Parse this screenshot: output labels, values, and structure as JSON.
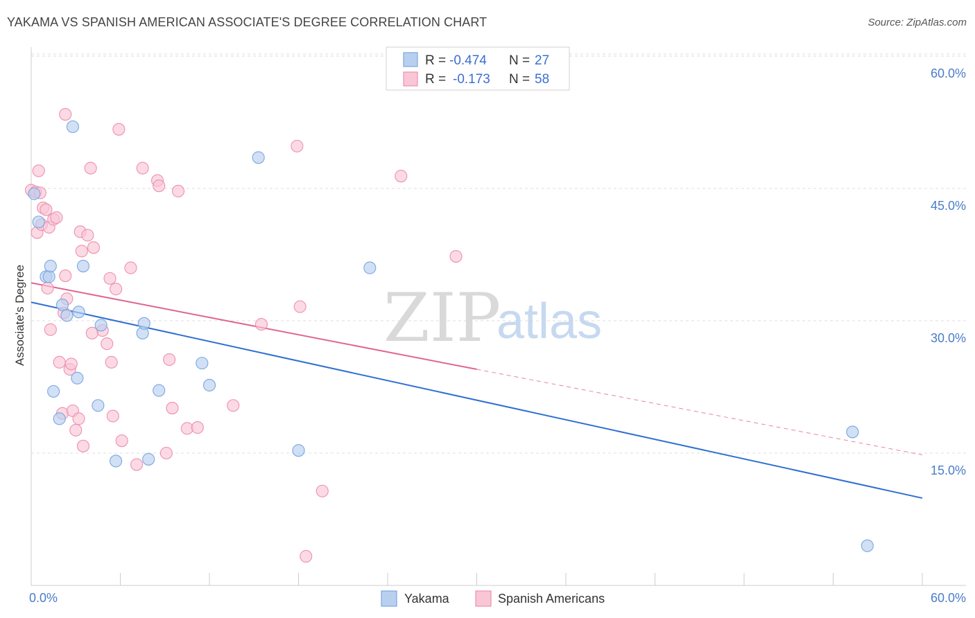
{
  "title": "YAKAMA VS SPANISH AMERICAN ASSOCIATE'S DEGREE CORRELATION CHART",
  "source": "Source: ZipAtlas.com",
  "watermark": {
    "zip": "ZIP",
    "atlas": "atlas"
  },
  "colors": {
    "blue_fill": "#b8d0f0",
    "blue_stroke": "#7aa6e0",
    "blue_line": "#2f6fd0",
    "pink_fill": "#f9c6d6",
    "pink_stroke": "#ee8fb0",
    "pink_line": "#e06590",
    "grid": "#dddddd",
    "axis_label": "#4a7cc9"
  },
  "chart_data": {
    "type": "scatter",
    "title": "YAKAMA VS SPANISH AMERICAN ASSOCIATE'S DEGREE CORRELATION CHART",
    "xlabel": "",
    "ylabel": "Associate's Degree",
    "xlim": [
      0,
      60
    ],
    "ylim": [
      0,
      61
    ],
    "x_tick_labels": {
      "min": "0.0%",
      "max": "60.0%"
    },
    "y_ticks": [
      {
        "value": 15,
        "label": "15.0%"
      },
      {
        "value": 30,
        "label": "30.0%"
      },
      {
        "value": 45,
        "label": "45.0%"
      },
      {
        "value": 60,
        "label": "60.0%"
      }
    ],
    "legend": [
      {
        "series": "Yakama",
        "r_label": "R =",
        "r_value": "-0.474",
        "n_label": "N =",
        "n_value": "27"
      },
      {
        "series": "Spanish Americans",
        "r_label": "R =",
        "r_value": "-0.173",
        "n_label": "N =",
        "n_value": "58"
      }
    ],
    "series": [
      {
        "name": "Yakama",
        "color": "blue",
        "trend": {
          "x0": 0,
          "y0": 32.1,
          "x1": 60,
          "y1": 9.9
        },
        "points": [
          [
            0.2,
            44.4
          ],
          [
            0.5,
            41.2
          ],
          [
            1.0,
            35.0
          ],
          [
            1.2,
            35.0
          ],
          [
            1.3,
            36.2
          ],
          [
            2.8,
            52.0
          ],
          [
            3.5,
            36.2
          ],
          [
            2.1,
            31.8
          ],
          [
            2.4,
            30.6
          ],
          [
            3.2,
            31.0
          ],
          [
            4.7,
            29.5
          ],
          [
            7.5,
            28.6
          ],
          [
            7.6,
            29.7
          ],
          [
            1.5,
            22.0
          ],
          [
            3.1,
            23.5
          ],
          [
            1.9,
            18.9
          ],
          [
            4.5,
            20.4
          ],
          [
            8.6,
            22.1
          ],
          [
            11.5,
            25.2
          ],
          [
            12.0,
            22.7
          ],
          [
            5.7,
            14.1
          ],
          [
            7.9,
            14.3
          ],
          [
            15.3,
            48.5
          ],
          [
            18.0,
            15.3
          ],
          [
            22.8,
            36.0
          ],
          [
            55.3,
            17.4
          ],
          [
            56.3,
            4.5
          ]
        ]
      },
      {
        "name": "Spanish Americans",
        "color": "pink",
        "trend_solid": {
          "x0": 0,
          "y0": 34.3,
          "x1": 30,
          "y1": 24.5
        },
        "trend_dashed": {
          "x0": 30,
          "y0": 24.5,
          "x1": 60,
          "y1": 14.8
        },
        "points": [
          [
            0.0,
            44.8
          ],
          [
            0.4,
            40.0
          ],
          [
            0.5,
            47.0
          ],
          [
            0.7,
            40.9
          ],
          [
            0.8,
            42.8
          ],
          [
            1.0,
            42.6
          ],
          [
            1.1,
            33.7
          ],
          [
            1.2,
            40.6
          ],
          [
            1.3,
            29.0
          ],
          [
            1.5,
            41.5
          ],
          [
            1.7,
            41.7
          ],
          [
            2.1,
            19.5
          ],
          [
            1.9,
            25.3
          ],
          [
            2.2,
            30.9
          ],
          [
            2.3,
            35.1
          ],
          [
            2.4,
            32.5
          ],
          [
            2.6,
            24.5
          ],
          [
            2.7,
            25.1
          ],
          [
            2.8,
            19.8
          ],
          [
            3.0,
            17.6
          ],
          [
            3.2,
            18.9
          ],
          [
            3.3,
            40.1
          ],
          [
            3.4,
            37.9
          ],
          [
            3.5,
            15.8
          ],
          [
            3.8,
            39.7
          ],
          [
            2.3,
            53.4
          ],
          [
            4.0,
            47.3
          ],
          [
            4.2,
            38.3
          ],
          [
            4.8,
            28.9
          ],
          [
            4.1,
            28.6
          ],
          [
            5.1,
            27.4
          ],
          [
            5.3,
            34.8
          ],
          [
            5.4,
            25.3
          ],
          [
            5.5,
            19.2
          ],
          [
            5.7,
            33.6
          ],
          [
            5.9,
            51.7
          ],
          [
            6.1,
            16.4
          ],
          [
            6.7,
            36.0
          ],
          [
            7.1,
            13.7
          ],
          [
            7.5,
            47.3
          ],
          [
            8.5,
            45.9
          ],
          [
            8.6,
            45.3
          ],
          [
            9.1,
            15.0
          ],
          [
            9.3,
            25.6
          ],
          [
            9.5,
            20.1
          ],
          [
            9.9,
            44.7
          ],
          [
            10.5,
            17.8
          ],
          [
            11.2,
            17.9
          ],
          [
            13.6,
            20.4
          ],
          [
            15.5,
            29.6
          ],
          [
            17.9,
            49.8
          ],
          [
            18.1,
            31.6
          ],
          [
            18.5,
            3.3
          ],
          [
            19.6,
            10.7
          ],
          [
            24.9,
            46.4
          ],
          [
            28.6,
            37.3
          ],
          [
            0.3,
            44.6
          ],
          [
            0.6,
            44.5
          ]
        ]
      }
    ]
  }
}
